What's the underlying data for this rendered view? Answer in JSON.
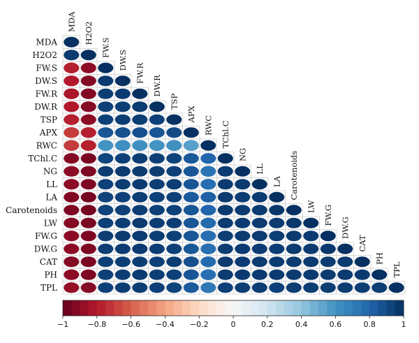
{
  "chart_data": {
    "type": "heatmap",
    "variables": [
      "MDA",
      "H2O2",
      "FW.S",
      "DW.S",
      "FW.R",
      "DW.R",
      "TSP",
      "APX",
      "RWC",
      "TChl.C",
      "NG",
      "LL",
      "LA",
      "Carotenoids",
      "LW",
      "FW.G",
      "DW.G",
      "CAT",
      "PH",
      "TPL"
    ],
    "correlations": [
      [
        1.0
      ],
      [
        0.96,
        1.0
      ],
      [
        -0.78,
        -0.9,
        1.0
      ],
      [
        -0.8,
        -0.92,
        0.96,
        1.0
      ],
      [
        -0.82,
        -0.93,
        0.95,
        0.96,
        1.0
      ],
      [
        -0.8,
        -0.92,
        0.94,
        0.95,
        0.96,
        1.0
      ],
      [
        -0.78,
        -0.9,
        0.94,
        0.95,
        0.95,
        0.94,
        1.0
      ],
      [
        -0.7,
        -0.78,
        0.86,
        0.88,
        0.88,
        0.86,
        0.9,
        1.0
      ],
      [
        -0.7,
        -0.78,
        0.6,
        0.62,
        0.62,
        0.6,
        0.62,
        0.55,
        1.0
      ],
      [
        -0.92,
        -0.95,
        0.92,
        0.94,
        0.95,
        0.94,
        0.93,
        0.85,
        0.8,
        1.0
      ],
      [
        -0.9,
        -0.94,
        0.95,
        0.96,
        0.96,
        0.95,
        0.94,
        0.86,
        0.74,
        0.96,
        1.0
      ],
      [
        -0.9,
        -0.94,
        0.94,
        0.95,
        0.96,
        0.95,
        0.95,
        0.86,
        0.76,
        0.96,
        0.96,
        1.0
      ],
      [
        -0.93,
        -0.96,
        0.93,
        0.94,
        0.95,
        0.94,
        0.94,
        0.84,
        0.82,
        0.96,
        0.95,
        0.96,
        1.0
      ],
      [
        -0.94,
        -0.96,
        0.93,
        0.94,
        0.95,
        0.94,
        0.94,
        0.86,
        0.8,
        0.96,
        0.96,
        0.96,
        0.97,
        1.0
      ],
      [
        -0.92,
        -0.95,
        0.94,
        0.95,
        0.96,
        0.95,
        0.95,
        0.86,
        0.78,
        0.96,
        0.96,
        0.96,
        0.96,
        0.97,
        1.0
      ],
      [
        -0.9,
        -0.94,
        0.95,
        0.96,
        0.96,
        0.95,
        0.94,
        0.86,
        0.76,
        0.95,
        0.96,
        0.96,
        0.95,
        0.96,
        0.96,
        1.0
      ],
      [
        -0.9,
        -0.94,
        0.95,
        0.96,
        0.96,
        0.95,
        0.94,
        0.85,
        0.76,
        0.95,
        0.96,
        0.96,
        0.95,
        0.96,
        0.96,
        0.97,
        1.0
      ],
      [
        -0.92,
        -0.95,
        0.94,
        0.95,
        0.95,
        0.94,
        0.95,
        0.88,
        0.78,
        0.96,
        0.96,
        0.96,
        0.96,
        0.96,
        0.96,
        0.96,
        0.96,
        1.0
      ],
      [
        -0.9,
        -0.94,
        0.94,
        0.95,
        0.96,
        0.95,
        0.94,
        0.86,
        0.76,
        0.96,
        0.96,
        0.96,
        0.96,
        0.96,
        0.96,
        0.96,
        0.96,
        0.96,
        1.0
      ],
      [
        -0.88,
        -0.92,
        0.94,
        0.95,
        0.95,
        0.94,
        0.93,
        0.84,
        0.72,
        0.94,
        0.95,
        0.95,
        0.94,
        0.95,
        0.95,
        0.95,
        0.95,
        0.95,
        0.95,
        1.0
      ]
    ],
    "colorbar": {
      "range": [
        -1,
        1
      ],
      "ticks": [
        -1,
        -0.8,
        -0.6,
        -0.4,
        -0.2,
        0,
        0.2,
        0.4,
        0.6,
        0.8,
        1
      ],
      "tick_labels": [
        "−1",
        "−0.8",
        "−0.6",
        "−0.4",
        "−0.2",
        "0",
        "0.2",
        "0.4",
        "0.6",
        "0.8",
        "1"
      ],
      "steps": 40,
      "colors": {
        "negative": "#67001f",
        "neutral": "#f7f7f7",
        "positive": "#053061"
      }
    },
    "shape": "ellipse",
    "layout": "lower-triangle"
  }
}
